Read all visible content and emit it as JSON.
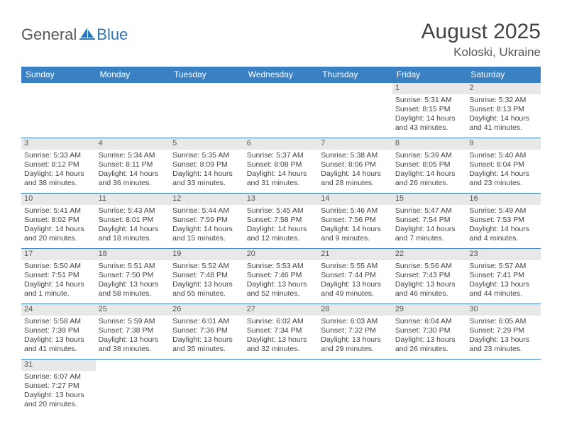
{
  "logo": {
    "part1": "General",
    "part2": "Blue"
  },
  "title": "August 2025",
  "location": "Koloski, Ukraine",
  "day_headers": [
    "Sunday",
    "Monday",
    "Tuesday",
    "Wednesday",
    "Thursday",
    "Friday",
    "Saturday"
  ],
  "colors": {
    "header_bg": "#3a81c4",
    "header_fg": "#ffffff",
    "daynum_bg": "#e8e8e8",
    "rule": "#3a81c4",
    "logo_blue": "#2d77b8"
  },
  "weeks": [
    [
      null,
      null,
      null,
      null,
      null,
      {
        "n": "1",
        "sunrise": "5:31 AM",
        "sunset": "8:15 PM",
        "day_h": "14",
        "day_m": "43"
      },
      {
        "n": "2",
        "sunrise": "5:32 AM",
        "sunset": "8:13 PM",
        "day_h": "14",
        "day_m": "41"
      }
    ],
    [
      {
        "n": "3",
        "sunrise": "5:33 AM",
        "sunset": "8:12 PM",
        "day_h": "14",
        "day_m": "38"
      },
      {
        "n": "4",
        "sunrise": "5:34 AM",
        "sunset": "8:11 PM",
        "day_h": "14",
        "day_m": "36"
      },
      {
        "n": "5",
        "sunrise": "5:35 AM",
        "sunset": "8:09 PM",
        "day_h": "14",
        "day_m": "33"
      },
      {
        "n": "6",
        "sunrise": "5:37 AM",
        "sunset": "8:08 PM",
        "day_h": "14",
        "day_m": "31"
      },
      {
        "n": "7",
        "sunrise": "5:38 AM",
        "sunset": "8:06 PM",
        "day_h": "14",
        "day_m": "28"
      },
      {
        "n": "8",
        "sunrise": "5:39 AM",
        "sunset": "8:05 PM",
        "day_h": "14",
        "day_m": "26"
      },
      {
        "n": "9",
        "sunrise": "5:40 AM",
        "sunset": "8:04 PM",
        "day_h": "14",
        "day_m": "23"
      }
    ],
    [
      {
        "n": "10",
        "sunrise": "5:41 AM",
        "sunset": "8:02 PM",
        "day_h": "14",
        "day_m": "20"
      },
      {
        "n": "11",
        "sunrise": "5:43 AM",
        "sunset": "8:01 PM",
        "day_h": "14",
        "day_m": "18"
      },
      {
        "n": "12",
        "sunrise": "5:44 AM",
        "sunset": "7:59 PM",
        "day_h": "14",
        "day_m": "15"
      },
      {
        "n": "13",
        "sunrise": "5:45 AM",
        "sunset": "7:58 PM",
        "day_h": "14",
        "day_m": "12"
      },
      {
        "n": "14",
        "sunrise": "5:46 AM",
        "sunset": "7:56 PM",
        "day_h": "14",
        "day_m": "9"
      },
      {
        "n": "15",
        "sunrise": "5:47 AM",
        "sunset": "7:54 PM",
        "day_h": "14",
        "day_m": "7"
      },
      {
        "n": "16",
        "sunrise": "5:49 AM",
        "sunset": "7:53 PM",
        "day_h": "14",
        "day_m": "4"
      }
    ],
    [
      {
        "n": "17",
        "sunrise": "5:50 AM",
        "sunset": "7:51 PM",
        "day_h": "14",
        "day_m": "1",
        "unit": "minute"
      },
      {
        "n": "18",
        "sunrise": "5:51 AM",
        "sunset": "7:50 PM",
        "day_h": "13",
        "day_m": "58"
      },
      {
        "n": "19",
        "sunrise": "5:52 AM",
        "sunset": "7:48 PM",
        "day_h": "13",
        "day_m": "55"
      },
      {
        "n": "20",
        "sunrise": "5:53 AM",
        "sunset": "7:46 PM",
        "day_h": "13",
        "day_m": "52"
      },
      {
        "n": "21",
        "sunrise": "5:55 AM",
        "sunset": "7:44 PM",
        "day_h": "13",
        "day_m": "49"
      },
      {
        "n": "22",
        "sunrise": "5:56 AM",
        "sunset": "7:43 PM",
        "day_h": "13",
        "day_m": "46"
      },
      {
        "n": "23",
        "sunrise": "5:57 AM",
        "sunset": "7:41 PM",
        "day_h": "13",
        "day_m": "44"
      }
    ],
    [
      {
        "n": "24",
        "sunrise": "5:58 AM",
        "sunset": "7:39 PM",
        "day_h": "13",
        "day_m": "41"
      },
      {
        "n": "25",
        "sunrise": "5:59 AM",
        "sunset": "7:38 PM",
        "day_h": "13",
        "day_m": "38"
      },
      {
        "n": "26",
        "sunrise": "6:01 AM",
        "sunset": "7:36 PM",
        "day_h": "13",
        "day_m": "35"
      },
      {
        "n": "27",
        "sunrise": "6:02 AM",
        "sunset": "7:34 PM",
        "day_h": "13",
        "day_m": "32"
      },
      {
        "n": "28",
        "sunrise": "6:03 AM",
        "sunset": "7:32 PM",
        "day_h": "13",
        "day_m": "29"
      },
      {
        "n": "29",
        "sunrise": "6:04 AM",
        "sunset": "7:30 PM",
        "day_h": "13",
        "day_m": "26"
      },
      {
        "n": "30",
        "sunrise": "6:05 AM",
        "sunset": "7:29 PM",
        "day_h": "13",
        "day_m": "23"
      }
    ],
    [
      {
        "n": "31",
        "sunrise": "6:07 AM",
        "sunset": "7:27 PM",
        "day_h": "13",
        "day_m": "20"
      },
      null,
      null,
      null,
      null,
      null,
      null
    ]
  ],
  "labels": {
    "sunrise": "Sunrise:",
    "sunset": "Sunset:",
    "daylight": "Daylight:",
    "hours": "hours",
    "and": "and",
    "minutes": "minutes."
  }
}
